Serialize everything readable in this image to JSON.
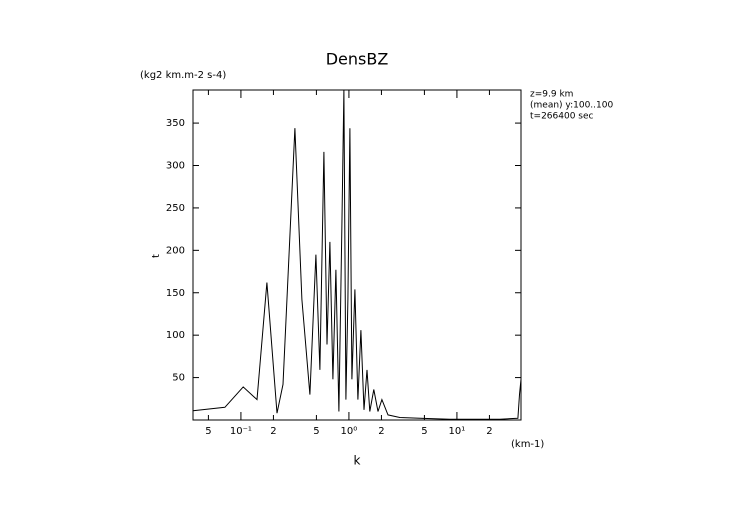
{
  "chart_data": {
    "type": "line",
    "title": "DensBZ",
    "y_unit": "(kg2 km.m-2 s-4)",
    "y_label": "t",
    "x_label": "k",
    "x_unit": "(km-1)",
    "annotations": [
      "z=9.9 km",
      "(mean) y:100..100",
      "t=266400 sec"
    ],
    "x_log": true,
    "color": "#000000",
    "xlim": [
      0.036,
      39.2
    ],
    "ylim": [
      0,
      389
    ],
    "xticks": [
      {
        "value": 0.05,
        "label": "5"
      },
      {
        "value": 0.1,
        "label": "10⁻¹"
      },
      {
        "value": 0.2,
        "label": "2"
      },
      {
        "value": 0.5,
        "label": "5"
      },
      {
        "value": 1,
        "label": "10⁰"
      },
      {
        "value": 2,
        "label": "2"
      },
      {
        "value": 5,
        "label": "5"
      },
      {
        "value": 10,
        "label": "10¹"
      },
      {
        "value": 20,
        "label": "2"
      }
    ],
    "yticks": [
      50,
      100,
      150,
      200,
      250,
      300,
      350
    ],
    "x": [
      0.036,
      0.071,
      0.105,
      0.141,
      0.174,
      0.216,
      0.245,
      0.316,
      0.367,
      0.435,
      0.495,
      0.539,
      0.587,
      0.626,
      0.667,
      0.711,
      0.758,
      0.808,
      0.861,
      0.899,
      0.938,
      0.979,
      1.02,
      1.066,
      1.136,
      1.21,
      1.29,
      1.38,
      1.47,
      1.56,
      1.7,
      1.86,
      2.02,
      2.3,
      2.96,
      4.54,
      8.6,
      25,
      36.7,
      38,
      39.2
    ],
    "values": [
      11,
      15,
      39,
      24,
      162,
      8,
      42,
      344,
      142,
      30,
      195,
      59,
      316,
      89,
      210,
      48,
      177,
      10,
      230,
      389,
      24,
      142,
      344,
      48,
      154,
      24,
      106,
      12,
      59,
      10,
      36,
      10,
      24,
      6,
      3,
      2,
      1,
      1,
      2,
      30,
      48
    ]
  }
}
